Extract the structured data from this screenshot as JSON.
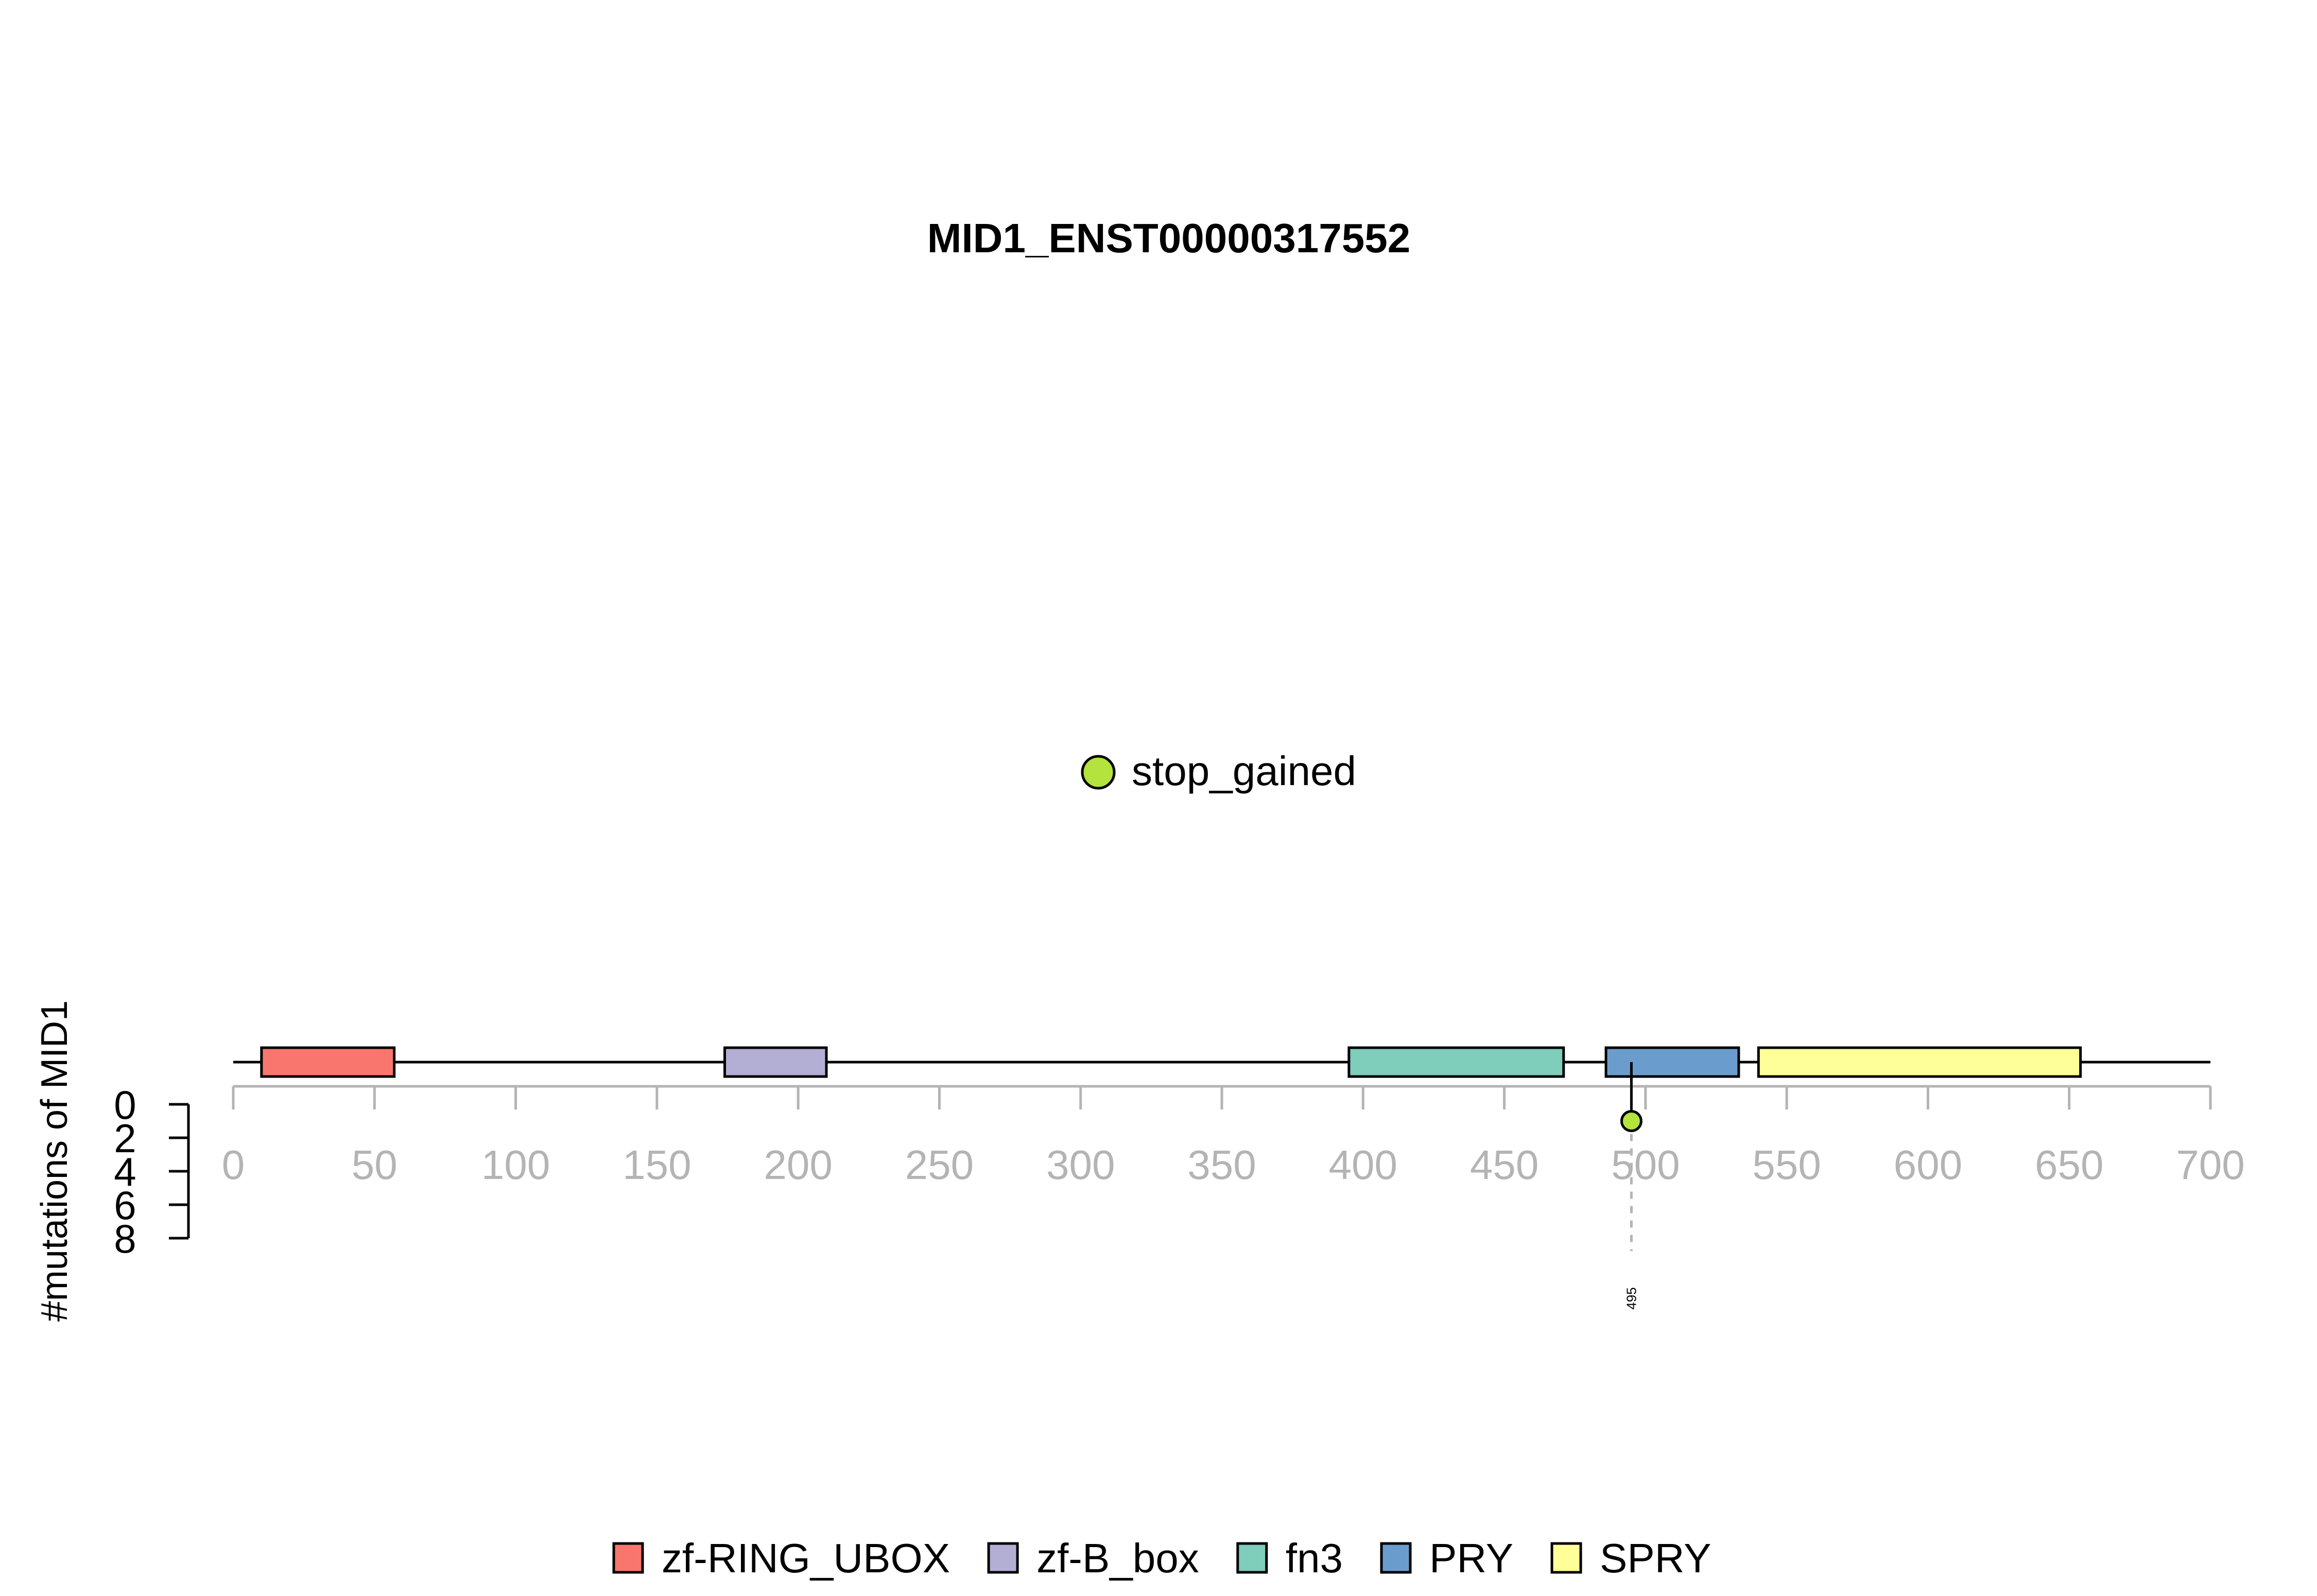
{
  "chart_data": {
    "type": "lollipop",
    "title": "MID1_ENST00000317552",
    "ylabel": "#mutations of MID1",
    "x_ticks": [
      "0",
      "50",
      "100",
      "150",
      "200",
      "250",
      "300",
      "350",
      "400",
      "450",
      "500",
      "550",
      "600",
      "650",
      "700"
    ],
    "y_ticks": [
      "0",
      "2",
      "4",
      "6",
      "8"
    ],
    "xlim": [
      0,
      700
    ],
    "ylim": [
      0,
      8
    ],
    "protein_length": 700,
    "domains": [
      {
        "name": "zf-RING_UBOX",
        "start": 10,
        "end": 57,
        "color": "#F8766D"
      },
      {
        "name": "zf-B_box",
        "start": 174,
        "end": 210,
        "color": "#B3AED3"
      },
      {
        "name": "fn3",
        "start": 395,
        "end": 471,
        "color": "#7FCDBB"
      },
      {
        "name": "PRY",
        "start": 486,
        "end": 533,
        "color": "#6A9DCD"
      },
      {
        "name": "SPRY",
        "start": 540,
        "end": 654,
        "color": "#FFFF99"
      }
    ],
    "mutations": [
      {
        "position": 495,
        "count": 1,
        "type": "stop_gained",
        "label": "495",
        "color": "#B3E33C"
      }
    ],
    "mutation_legend": [
      {
        "label": "stop_gained",
        "color": "#B3E33C"
      }
    ],
    "domain_legend": [
      {
        "label": "zf-RING_UBOX",
        "color": "#F8766D"
      },
      {
        "label": "zf-B_box",
        "color": "#B3AED3"
      },
      {
        "label": "fn3",
        "color": "#7FCDBB"
      },
      {
        "label": "PRY",
        "color": "#6A9DCD"
      },
      {
        "label": "SPRY",
        "color": "#FFFF99"
      }
    ]
  }
}
